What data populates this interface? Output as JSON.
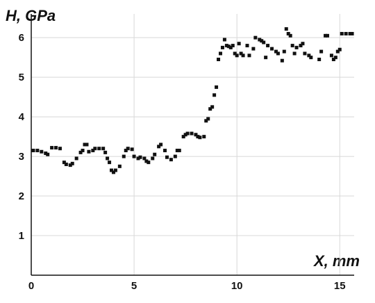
{
  "chart_data": {
    "type": "scatter",
    "x_label": "X, mm",
    "y_label": "H, GPa",
    "xlim": [
      0,
      15.7
    ],
    "ylim": [
      0,
      6.6
    ],
    "xticks": [
      0,
      5,
      10,
      15
    ],
    "yticks": [
      1,
      2,
      3,
      4,
      5,
      6
    ],
    "grid": true,
    "series": [
      {
        "color": "#111111",
        "x": [
          0.1,
          0.3,
          0.5,
          0.7,
          0.8,
          1.0,
          1.2,
          1.4,
          1.6,
          1.7,
          1.9,
          2.0,
          2.2,
          2.4,
          2.5,
          2.6,
          2.7,
          2.8,
          3.0,
          3.1,
          3.3,
          3.5,
          3.6,
          3.7,
          3.8,
          3.9,
          4.0,
          4.1,
          4.3,
          4.5,
          4.6,
          4.7,
          4.9,
          5.0,
          5.2,
          5.3,
          5.5,
          5.6,
          5.7,
          5.9,
          6.0,
          6.2,
          6.3,
          6.5,
          6.6,
          6.8,
          7.0,
          7.1,
          7.2,
          7.4,
          7.5,
          7.6,
          7.8,
          8.0,
          8.1,
          8.2,
          8.4,
          8.5,
          8.6,
          8.7,
          8.8,
          8.9,
          9.0,
          9.1,
          9.2,
          9.3,
          9.4,
          9.5,
          9.6,
          9.7,
          9.8,
          9.9,
          10.0,
          10.1,
          10.2,
          10.3,
          10.5,
          10.6,
          10.8,
          10.9,
          11.1,
          11.2,
          11.3,
          11.4,
          11.5,
          11.7,
          11.9,
          12.0,
          12.2,
          12.3,
          12.4,
          12.5,
          12.6,
          12.7,
          12.8,
          12.9,
          13.1,
          13.2,
          13.3,
          13.5,
          13.6,
          14.0,
          14.1,
          14.3,
          14.4,
          14.6,
          14.7,
          14.8,
          14.9,
          15.0,
          15.1,
          15.3,
          15.5,
          15.6
        ],
        "values": [
          3.15,
          3.15,
          3.12,
          3.08,
          3.05,
          3.22,
          3.22,
          3.2,
          2.85,
          2.8,
          2.78,
          2.82,
          2.95,
          3.1,
          3.15,
          3.3,
          3.3,
          3.12,
          3.15,
          3.2,
          3.2,
          3.2,
          3.1,
          2.95,
          2.85,
          2.65,
          2.6,
          2.65,
          2.75,
          3.0,
          3.15,
          3.2,
          3.18,
          3.0,
          2.95,
          2.98,
          2.95,
          2.88,
          2.85,
          2.95,
          3.05,
          3.25,
          3.3,
          3.15,
          2.98,
          2.92,
          3.0,
          3.15,
          3.15,
          3.5,
          3.55,
          3.58,
          3.58,
          3.55,
          3.5,
          3.48,
          3.5,
          3.9,
          3.95,
          4.2,
          4.25,
          4.55,
          4.75,
          5.45,
          5.6,
          5.75,
          5.95,
          5.8,
          5.78,
          5.75,
          5.8,
          5.6,
          5.55,
          5.85,
          5.6,
          5.55,
          5.8,
          5.55,
          5.72,
          6.0,
          5.95,
          5.92,
          5.88,
          5.5,
          5.8,
          5.72,
          5.65,
          5.6,
          5.42,
          5.65,
          6.22,
          6.1,
          6.05,
          5.8,
          5.6,
          5.75,
          5.8,
          5.85,
          5.6,
          5.55,
          5.5,
          5.45,
          5.65,
          6.05,
          6.05,
          5.55,
          5.45,
          5.5,
          5.65,
          5.7,
          6.1,
          6.1,
          6.1,
          6.1
        ]
      }
    ]
  }
}
